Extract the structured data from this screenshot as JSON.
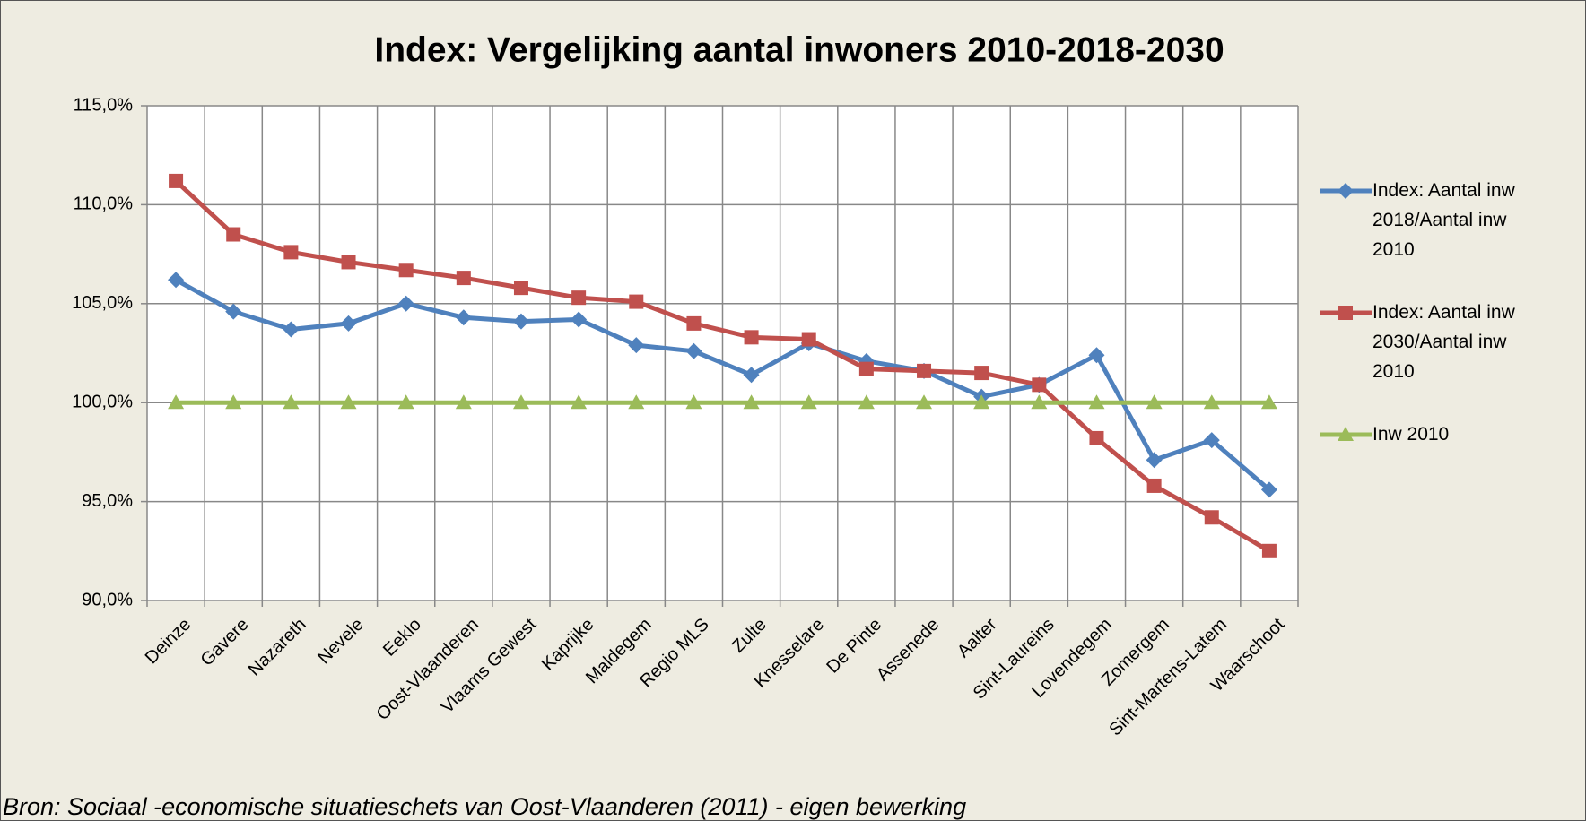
{
  "chart_data": {
    "type": "line",
    "title": "Index: Vergelijking aantal inwoners 2010-2018-2030",
    "source": "Bron: Sociaal -economische situatieschets van Oost-Vlaanderen (2011) - eigen bewerking",
    "categories": [
      "Deinze",
      "Gavere",
      "Nazareth",
      "Nevele",
      "Eeklo",
      "Oost-Vlaanderen",
      "Vlaams Gewest",
      "Kaprijke",
      "Maldegem",
      "Regio MLS",
      "Zulte",
      "Knesselare",
      "De Pinte",
      "Assenede",
      "Aalter",
      "Sint-Laureins",
      "Lovendegem",
      "Zomergem",
      "Sint-Martens-Latem",
      "Waarschoot"
    ],
    "series": [
      {
        "name": "Index: Aantal inw 2018/Aantal inw 2010",
        "color": "#4f81bd",
        "marker": "diamond",
        "values": [
          106.2,
          104.6,
          103.7,
          104.0,
          105.0,
          104.3,
          104.1,
          104.2,
          102.9,
          102.6,
          101.4,
          103.0,
          102.1,
          101.6,
          100.3,
          100.9,
          102.4,
          97.1,
          98.1,
          95.6
        ]
      },
      {
        "name": "Index: Aantal inw 2030/Aantal inw 2010",
        "color": "#c0504d",
        "marker": "square",
        "values": [
          111.2,
          108.5,
          107.6,
          107.1,
          106.7,
          106.3,
          105.8,
          105.3,
          105.1,
          104.0,
          103.3,
          103.2,
          101.7,
          101.6,
          101.5,
          100.9,
          98.2,
          95.8,
          94.2,
          92.5
        ]
      },
      {
        "name": "Inw 2010",
        "color": "#9bbb59",
        "marker": "triangle",
        "values": [
          100,
          100,
          100,
          100,
          100,
          100,
          100,
          100,
          100,
          100,
          100,
          100,
          100,
          100,
          100,
          100,
          100,
          100,
          100,
          100
        ]
      }
    ],
    "ylim": [
      90,
      115
    ],
    "yticks": [
      {
        "value": 90,
        "label": "90,0%"
      },
      {
        "value": 95,
        "label": "95,0%"
      },
      {
        "value": 100,
        "label": "100,0%"
      },
      {
        "value": 105,
        "label": "105,0%"
      },
      {
        "value": 110,
        "label": "110,0%"
      },
      {
        "value": 115,
        "label": "115,0%"
      }
    ],
    "grid": true,
    "legend": "right"
  }
}
